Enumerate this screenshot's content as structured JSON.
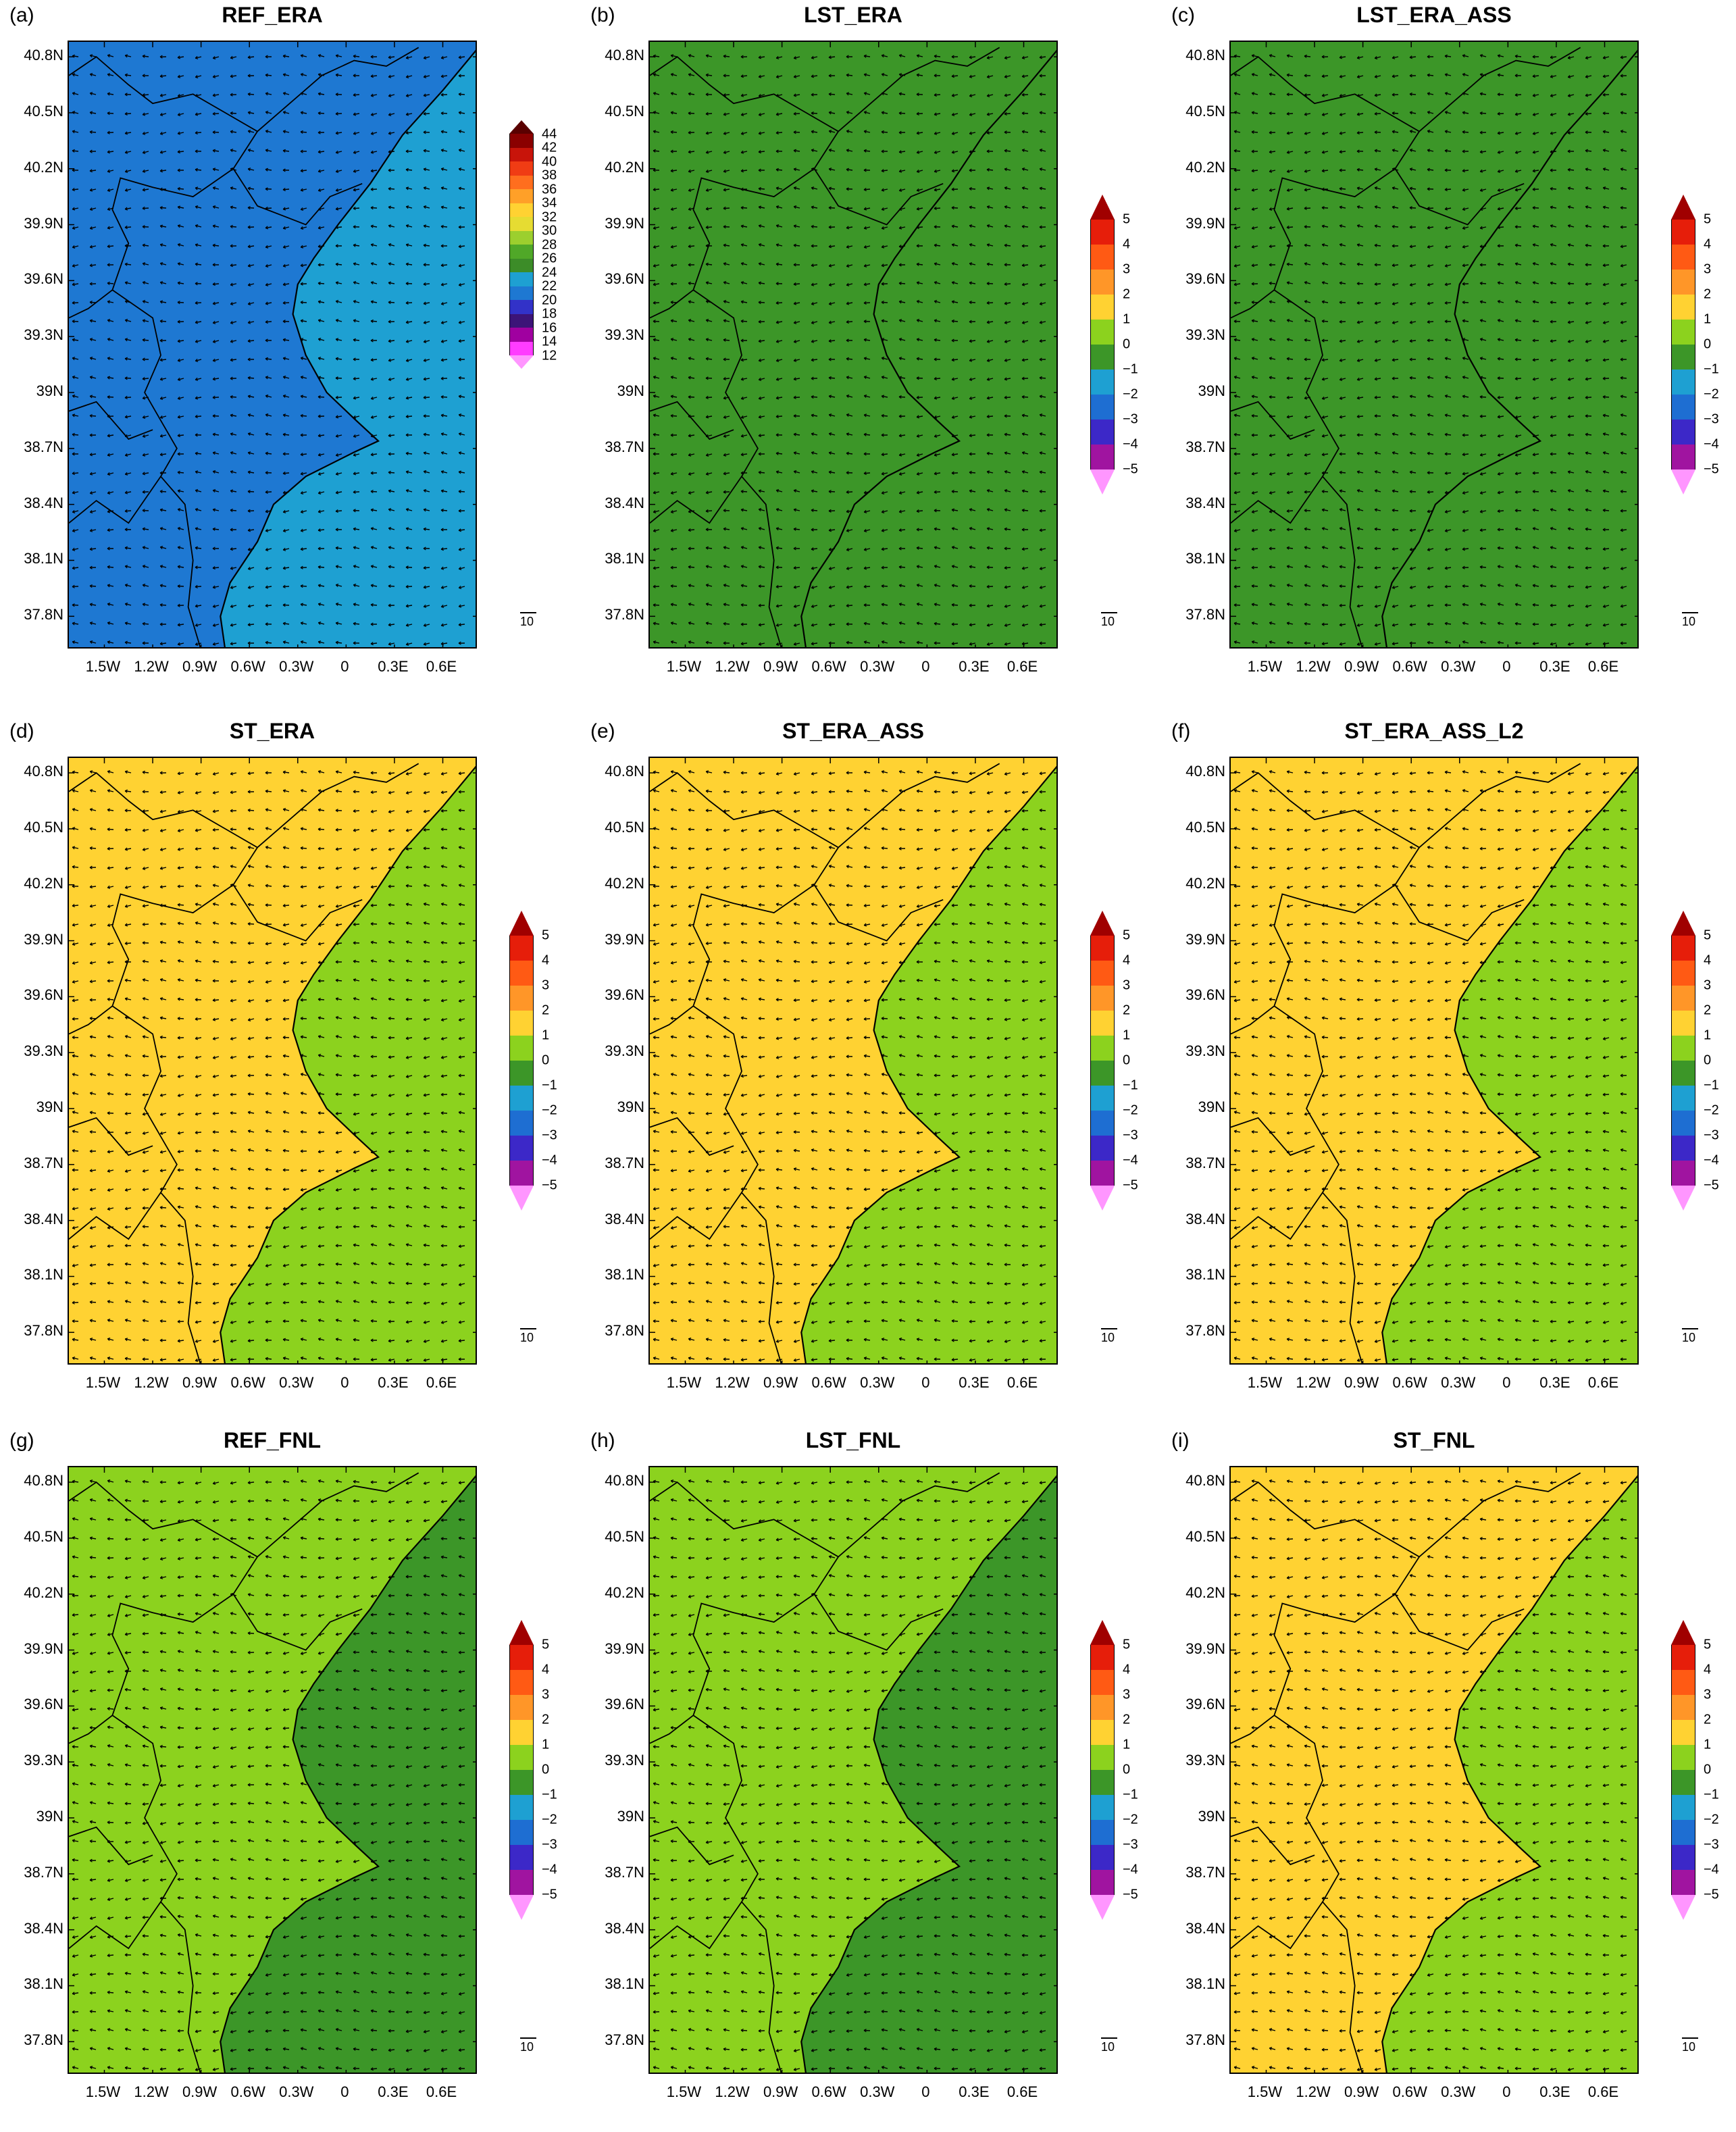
{
  "panels": [
    {
      "id": "a",
      "letter": "(a)",
      "title": "REF_ERA",
      "scale": "abs",
      "pattern": "ref_era"
    },
    {
      "id": "b",
      "letter": "(b)",
      "title": "LST_ERA",
      "scale": "diff",
      "pattern": "lst_era"
    },
    {
      "id": "c",
      "letter": "(c)",
      "title": "LST_ERA_ASS",
      "scale": "diff",
      "pattern": "lst_era_ass"
    },
    {
      "id": "d",
      "letter": "(d)",
      "title": "ST_ERA",
      "scale": "diff",
      "pattern": "st"
    },
    {
      "id": "e",
      "letter": "(e)",
      "title": "ST_ERA_ASS",
      "scale": "diff",
      "pattern": "st"
    },
    {
      "id": "f",
      "letter": "(f)",
      "title": "ST_ERA_ASS_L2",
      "scale": "diff",
      "pattern": "st"
    },
    {
      "id": "g",
      "letter": "(g)",
      "title": "REF_FNL",
      "scale": "diff",
      "pattern": "fnl"
    },
    {
      "id": "h",
      "letter": "(h)",
      "title": "LST_FNL",
      "scale": "diff",
      "pattern": "fnl"
    },
    {
      "id": "i",
      "letter": "(i)",
      "title": "ST_FNL",
      "scale": "diff",
      "pattern": "st_fnl"
    }
  ],
  "lat_labels": [
    "40.8N",
    "40.5N",
    "40.2N",
    "39.9N",
    "39.6N",
    "39.3N",
    "39N",
    "38.7N",
    "38.4N",
    "38.1N",
    "37.8N"
  ],
  "lon_labels": [
    "1.5W",
    "1.2W",
    "0.9W",
    "0.6W",
    "0.3W",
    "0",
    "0.3E",
    "0.6E"
  ],
  "ref_vector_label": "10",
  "colorbars": {
    "abs": {
      "labels": [
        "44",
        "42",
        "40",
        "38",
        "36",
        "34",
        "32",
        "30",
        "28",
        "26",
        "24",
        "22",
        "20",
        "18",
        "16",
        "14",
        "12"
      ],
      "colors": [
        "#5a0000",
        "#8a0000",
        "#c8140a",
        "#f03c14",
        "#ff6e1e",
        "#ffa028",
        "#ffd232",
        "#e6dc32",
        "#9ccf2e",
        "#50a828",
        "#3c8c28",
        "#1ea0d2",
        "#1e78d2",
        "#3232c8",
        "#3c1478",
        "#a000a0",
        "#ff3cff",
        "#ff96ff"
      ]
    },
    "diff": {
      "labels": [
        "5",
        "4",
        "3",
        "2",
        "1",
        "0",
        "−1",
        "−2",
        "−3",
        "−4",
        "−5"
      ],
      "colors": [
        "#a00000",
        "#e61e0a",
        "#ff5a14",
        "#ff9628",
        "#ffd232",
        "#8cd21e",
        "#3c9628",
        "#1ea0d2",
        "#1e6ed2",
        "#3c28c8",
        "#a014a0",
        "#ff96ff"
      ]
    }
  },
  "colors": {
    "sea_diff": "#3c9628",
    "land_light": "#8cd21e",
    "land_warm": "#ffd232",
    "land_hot": "#ff9628",
    "land_hotter": "#ff5a14",
    "neg1": "#1ea0d2",
    "neg2": "#1e6ed2",
    "neg3": "#3c28c8",
    "abs_sea": "#1ea0d2",
    "abs_land": "#1e78d2",
    "abs_cold": "#3232c8",
    "abs_colder": "#3c1478",
    "abs_magenta": "#a000a0",
    "abs_pink": "#ff3cff",
    "abs_green": "#50a828"
  }
}
